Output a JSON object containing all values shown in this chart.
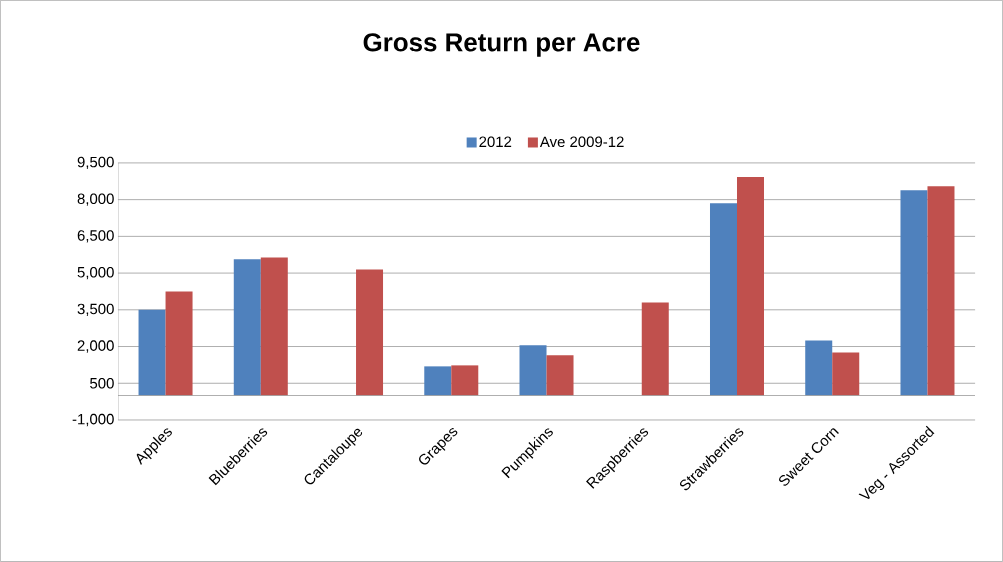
{
  "chart_data": {
    "type": "bar",
    "title": "Gross Return per Acre",
    "categories": [
      "Apples",
      "Blueberries",
      "Cantaloupe",
      "Grapes",
      "Pumpkins",
      "Raspberries",
      "Strawberries",
      "Sweet Corn",
      "Veg - Assorted"
    ],
    "series": [
      {
        "name": "2012",
        "color": "#4f81bd",
        "values": [
          3500,
          5560,
          null,
          1190,
          2050,
          null,
          7850,
          2250,
          8380
        ]
      },
      {
        "name": "Ave 2009-12",
        "color": "#c0504d",
        "values": [
          4250,
          5640,
          5150,
          1230,
          1640,
          3800,
          8920,
          1760,
          8550
        ]
      }
    ],
    "ylim": [
      -1000,
      9500
    ],
    "yticks": [
      {
        "value": -1000,
        "label": "-1,000"
      },
      500,
      {
        "value": 2000,
        "label": "2,000"
      },
      {
        "value": 3500,
        "label": "3,500"
      },
      {
        "value": 5000,
        "label": "5,000"
      },
      {
        "value": 6500,
        "label": "6,500"
      },
      {
        "value": 8000,
        "label": "8,000"
      },
      {
        "value": 9500,
        "label": "9,500"
      }
    ],
    "grid": "y",
    "legend": "top"
  }
}
